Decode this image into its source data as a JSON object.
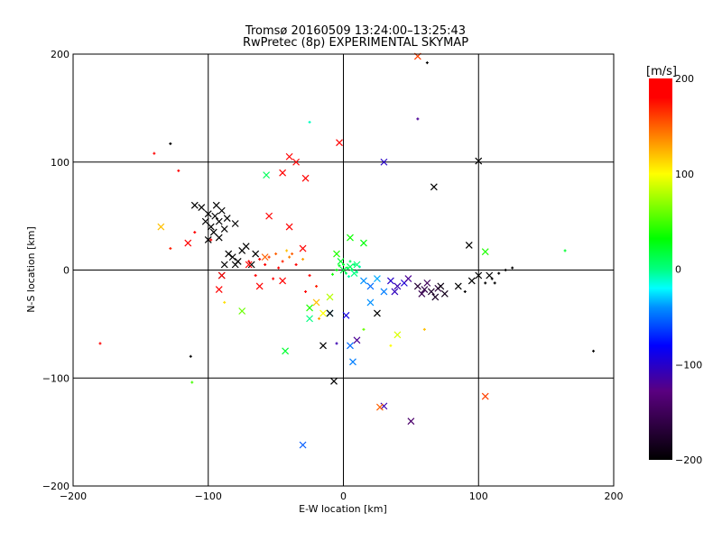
{
  "chart_data": {
    "type": "scatter",
    "title": "Tromsø 20160509 13:24:00–13:25:43",
    "subtitle": "RwPretec (8p) EXPERIMENTAL SKYMAP",
    "xlabel": "E-W location [km]",
    "ylabel": "N-S location [km]",
    "xlim": [
      -200,
      200
    ],
    "ylim": [
      -200,
      200
    ],
    "xticks": [
      "-200",
      "-100",
      "0",
      "100",
      "200"
    ],
    "yticks": [
      "-200",
      "-100",
      "0",
      "100",
      "200"
    ],
    "grid": true,
    "colorbar": {
      "label": "[m/s]",
      "range": [
        -200,
        200
      ],
      "ticks": [
        "200",
        "100",
        "0",
        "-100",
        "-200"
      ],
      "placement": "right"
    },
    "point_fields": [
      "x_km",
      "y_km",
      "velocity_ms",
      "marker"
    ],
    "points": [
      [
        -95,
        50,
        -200,
        "x"
      ],
      [
        -92,
        45,
        -200,
        "x"
      ],
      [
        -98,
        40,
        -200,
        "x"
      ],
      [
        -90,
        55,
        -200,
        "x"
      ],
      [
        -100,
        52,
        -200,
        "x"
      ],
      [
        -88,
        38,
        -200,
        "x"
      ],
      [
        -94,
        60,
        -200,
        "x"
      ],
      [
        -102,
        45,
        -200,
        "x"
      ],
      [
        -86,
        48,
        -200,
        "x"
      ],
      [
        -96,
        35,
        -200,
        "x"
      ],
      [
        -105,
        58,
        -200,
        "x"
      ],
      [
        -110,
        60,
        -200,
        "x"
      ],
      [
        -92,
        30,
        -200,
        "x"
      ],
      [
        -80,
        43,
        -200,
        "x"
      ],
      [
        -100,
        28,
        -200,
        "x"
      ],
      [
        -82,
        12,
        -200,
        "x"
      ],
      [
        -78,
        8,
        -200,
        "x"
      ],
      [
        -85,
        15,
        -200,
        "x"
      ],
      [
        -75,
        18,
        -200,
        "x"
      ],
      [
        -88,
        5,
        -200,
        "x"
      ],
      [
        -72,
        22,
        -200,
        "x"
      ],
      [
        -80,
        5,
        -200,
        "x"
      ],
      [
        -68,
        5,
        -200,
        "x"
      ],
      [
        -90,
        -5,
        -200,
        "x"
      ],
      [
        -65,
        15,
        -200,
        "x"
      ],
      [
        -70,
        8,
        180,
        "+"
      ],
      [
        -62,
        10,
        190,
        "+"
      ],
      [
        -55,
        12,
        160,
        "+"
      ],
      [
        -50,
        15,
        150,
        "+"
      ],
      [
        -45,
        8,
        170,
        "+"
      ],
      [
        -40,
        12,
        140,
        "+"
      ],
      [
        -35,
        5,
        190,
        "+"
      ],
      [
        -30,
        10,
        130,
        "+"
      ],
      [
        -58,
        5,
        200,
        "+"
      ],
      [
        -48,
        2,
        185,
        "+"
      ],
      [
        -42,
        18,
        120,
        "+"
      ],
      [
        -38,
        15,
        150,
        "+"
      ],
      [
        -65,
        -5,
        200,
        "+"
      ],
      [
        -52,
        -8,
        190,
        "+"
      ],
      [
        -25,
        -5,
        180,
        "+"
      ],
      [
        -20,
        -15,
        170,
        "+"
      ],
      [
        -28,
        -20,
        190,
        "+"
      ],
      [
        -70,
        5,
        180,
        "x"
      ],
      [
        -58,
        12,
        150,
        "x"
      ],
      [
        -45,
        -10,
        200,
        "x"
      ],
      [
        -30,
        20,
        200,
        "x"
      ],
      [
        -40,
        40,
        190,
        "x"
      ],
      [
        -55,
        50,
        200,
        "x"
      ],
      [
        -90,
        -5,
        200,
        "x"
      ],
      [
        -115,
        25,
        200,
        "x"
      ],
      [
        -92,
        -18,
        200,
        "x"
      ],
      [
        -40,
        105,
        200,
        "x"
      ],
      [
        -45,
        90,
        200,
        "x"
      ],
      [
        -28,
        85,
        190,
        "x"
      ],
      [
        -35,
        100,
        200,
        "x"
      ],
      [
        -3,
        118,
        200,
        "x"
      ],
      [
        -62,
        -15,
        190,
        "x"
      ],
      [
        -20,
        -30,
        120,
        "x"
      ],
      [
        -15,
        -40,
        100,
        "x"
      ],
      [
        0,
        5,
        20,
        "+"
      ],
      [
        3,
        2,
        15,
        "+"
      ],
      [
        6,
        0,
        10,
        "+"
      ],
      [
        2,
        -3,
        5,
        "+"
      ],
      [
        -3,
        4,
        25,
        "+"
      ],
      [
        8,
        5,
        0,
        "+"
      ],
      [
        5,
        8,
        10,
        "+"
      ],
      [
        10,
        -2,
        0,
        "+"
      ],
      [
        -5,
        0,
        30,
        "+"
      ],
      [
        12,
        3,
        -10,
        "+"
      ],
      [
        4,
        -6,
        -5,
        "+"
      ],
      [
        -8,
        -4,
        35,
        "+"
      ],
      [
        0,
        0,
        15,
        "x"
      ],
      [
        5,
        3,
        10,
        "x"
      ],
      [
        10,
        5,
        5,
        "x"
      ],
      [
        -2,
        8,
        20,
        "x"
      ],
      [
        8,
        -3,
        0,
        "x"
      ],
      [
        15,
        25,
        30,
        "x"
      ],
      [
        -5,
        15,
        40,
        "x"
      ],
      [
        -25,
        -35,
        40,
        "x"
      ],
      [
        5,
        30,
        35,
        "x"
      ],
      [
        20,
        -30,
        -40,
        "x"
      ],
      [
        15,
        -10,
        -40,
        "x"
      ],
      [
        20,
        -15,
        -50,
        "x"
      ],
      [
        25,
        -8,
        -35,
        "x"
      ],
      [
        30,
        -20,
        -45,
        "x"
      ],
      [
        -10,
        -40,
        -30,
        "x"
      ],
      [
        5,
        -70,
        -50,
        "x"
      ],
      [
        7,
        -85,
        -45,
        "x"
      ],
      [
        -30,
        -162,
        -55,
        "x"
      ],
      [
        35,
        -10,
        -100,
        "x"
      ],
      [
        40,
        -15,
        -110,
        "x"
      ],
      [
        45,
        -12,
        -95,
        "x"
      ],
      [
        38,
        -20,
        -105,
        "x"
      ],
      [
        48,
        -8,
        -120,
        "x"
      ],
      [
        10,
        -65,
        -120,
        "x"
      ],
      [
        2,
        -42,
        -90,
        "x"
      ],
      [
        30,
        100,
        -100,
        "x"
      ],
      [
        -5,
        -68,
        -110,
        "+"
      ],
      [
        50,
        -140,
        -140,
        "x"
      ],
      [
        55,
        -15,
        -170,
        "x"
      ],
      [
        60,
        -18,
        -160,
        "x"
      ],
      [
        65,
        -20,
        -175,
        "x"
      ],
      [
        70,
        -17,
        -165,
        "x"
      ],
      [
        75,
        -22,
        -185,
        "x"
      ],
      [
        62,
        -12,
        -150,
        "x"
      ],
      [
        68,
        -25,
        -180,
        "x"
      ],
      [
        72,
        -15,
        -190,
        "x"
      ],
      [
        58,
        -22,
        -155,
        "x"
      ],
      [
        85,
        -15,
        -200,
        "x"
      ],
      [
        95,
        -10,
        -200,
        "x"
      ],
      [
        100,
        -5,
        -200,
        "x"
      ],
      [
        110,
        -8,
        -200,
        "+"
      ],
      [
        115,
        -3,
        -200,
        "+"
      ],
      [
        120,
        0,
        -200,
        "+"
      ],
      [
        105,
        -12,
        -200,
        "+"
      ],
      [
        90,
        -20,
        -200,
        "+"
      ],
      [
        125,
        2,
        -200,
        "+"
      ],
      [
        108,
        -5,
        -200,
        "x"
      ],
      [
        112,
        -12,
        -200,
        "+"
      ],
      [
        67,
        77,
        -200,
        "x"
      ],
      [
        100,
        101,
        -200,
        "x"
      ],
      [
        93,
        23,
        -200,
        "x"
      ],
      [
        -15,
        -70,
        -200,
        "x"
      ],
      [
        -7,
        -103,
        -200,
        "x"
      ],
      [
        -113,
        -80,
        -200,
        "+"
      ],
      [
        -128,
        117,
        -200,
        "+"
      ],
      [
        -10,
        -40,
        -200,
        "x"
      ],
      [
        25,
        -40,
        -200,
        "x"
      ],
      [
        185,
        -75,
        -200,
        "+"
      ],
      [
        62,
        192,
        -200,
        "+"
      ],
      [
        -57,
        88,
        10,
        "x"
      ],
      [
        -25,
        -45,
        0,
        "x"
      ],
      [
        -25,
        137,
        -10,
        "+"
      ],
      [
        -112,
        -104,
        50,
        "+"
      ],
      [
        164,
        18,
        20,
        "+"
      ],
      [
        -43,
        -75,
        20,
        "x"
      ],
      [
        105,
        17,
        40,
        "x"
      ],
      [
        30,
        -126,
        -110,
        "x"
      ],
      [
        55,
        140,
        -120,
        "+"
      ],
      [
        105,
        -117,
        160,
        "x"
      ],
      [
        27,
        -127,
        150,
        "x"
      ],
      [
        -98,
        28,
        200,
        "+"
      ],
      [
        -110,
        35,
        190,
        "+"
      ],
      [
        -122,
        92,
        200,
        "+"
      ],
      [
        -180,
        -68,
        200,
        "+"
      ],
      [
        -135,
        40,
        120,
        "x"
      ],
      [
        55,
        198,
        160,
        "x"
      ],
      [
        -128,
        20,
        170,
        "+"
      ],
      [
        -88,
        -30,
        110,
        "+"
      ],
      [
        -140,
        108,
        200,
        "+"
      ],
      [
        -75,
        -38,
        60,
        "x"
      ],
      [
        40,
        -60,
        90,
        "x"
      ],
      [
        35,
        -70,
        100,
        "+"
      ],
      [
        60,
        -55,
        120,
        "+"
      ],
      [
        15,
        -55,
        60,
        "+"
      ],
      [
        -10,
        -25,
        80,
        "x"
      ],
      [
        -18,
        -45,
        130,
        "+"
      ]
    ]
  }
}
